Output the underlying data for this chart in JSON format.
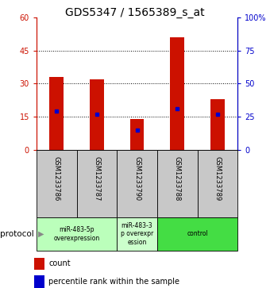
{
  "title": "GDS5347 / 1565389_s_at",
  "samples": [
    "GSM1233786",
    "GSM1233787",
    "GSM1233790",
    "GSM1233788",
    "GSM1233789"
  ],
  "counts": [
    33,
    32,
    14,
    51,
    23
  ],
  "percentile_ranks": [
    29,
    27,
    15,
    31,
    27
  ],
  "ylim_left": [
    0,
    60
  ],
  "ylim_right": [
    0,
    100
  ],
  "yticks_left": [
    0,
    15,
    30,
    45,
    60
  ],
  "yticks_right": [
    0,
    25,
    50,
    75,
    100
  ],
  "bar_color": "#cc1100",
  "marker_color": "#0000cc",
  "plot_bg": "#ffffff",
  "sample_bg": "#c8c8c8",
  "protocol_groups": [
    {
      "label": "miR-483-5p\noverexpression",
      "samples": [
        0,
        1
      ],
      "color": "#bbffbb"
    },
    {
      "label": "miR-483-3\np overexpr\nession",
      "samples": [
        2
      ],
      "color": "#ccffcc"
    },
    {
      "label": "control",
      "samples": [
        3,
        4
      ],
      "color": "#44dd44"
    }
  ],
  "legend_items": [
    {
      "label": "count",
      "color": "#cc1100"
    },
    {
      "label": "percentile rank within the sample",
      "color": "#0000cc"
    }
  ],
  "protocol_label": "protocol",
  "title_fontsize": 10,
  "tick_fontsize": 7,
  "sample_fontsize": 6,
  "protocol_fontsize": 7.5,
  "legend_fontsize": 7
}
